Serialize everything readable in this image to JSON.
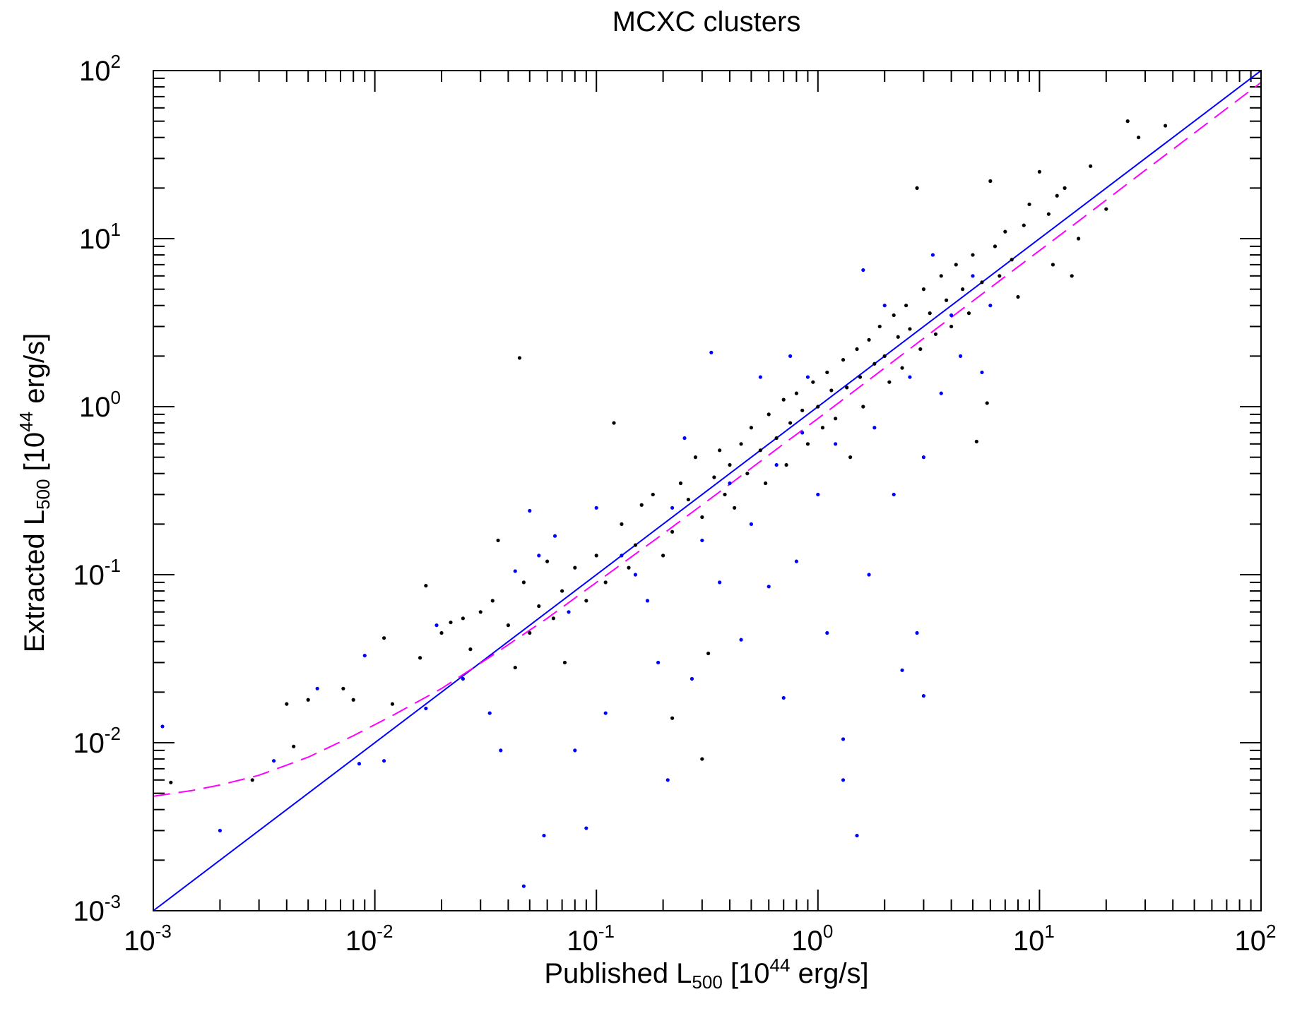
{
  "chart_data": {
    "type": "scatter",
    "title": "MCXC clusters",
    "xlabel": {
      "main": "Published L",
      "sub": "500",
      "pre": " [10",
      "sup": "44",
      "post": " erg/s]"
    },
    "ylabel": {
      "main": "Extracted L",
      "sub": "500",
      "pre": " [10",
      "sup": "44",
      "post": " erg/s]"
    },
    "x_scale": "log",
    "y_scale": "log",
    "xlim": [
      0.001,
      100
    ],
    "ylim": [
      0.001,
      100
    ],
    "x_tick_labels": [
      {
        "base": "10",
        "exp": "-3",
        "value": 0.001
      },
      {
        "base": "10",
        "exp": "-2",
        "value": 0.01
      },
      {
        "base": "10",
        "exp": "-1",
        "value": 0.1
      },
      {
        "base": "10",
        "exp": "0",
        "value": 1
      },
      {
        "base": "10",
        "exp": "1",
        "value": 10
      },
      {
        "base": "10",
        "exp": "2",
        "value": 100
      }
    ],
    "y_tick_labels": [
      {
        "base": "10",
        "exp": "-3",
        "value": 0.001
      },
      {
        "base": "10",
        "exp": "-2",
        "value": 0.01
      },
      {
        "base": "10",
        "exp": "-1",
        "value": 0.1
      },
      {
        "base": "10",
        "exp": "0",
        "value": 1
      },
      {
        "base": "10",
        "exp": "1",
        "value": 10
      },
      {
        "base": "10",
        "exp": "2",
        "value": 100
      }
    ],
    "grid": false,
    "colors": {
      "black_points": "#000000",
      "blue_points": "#0000ff",
      "identity_line": "#0000ff",
      "fit_line": "#ff00ff"
    },
    "lines": [
      {
        "style": "solid",
        "color": "#0000ff",
        "x": [
          0.001,
          100
        ],
        "y": [
          0.001,
          100
        ]
      },
      {
        "style": "dashed",
        "color": "#ff00ff",
        "x": [
          0.001,
          0.0015,
          0.002,
          0.003,
          0.005,
          0.008,
          0.012,
          0.02,
          0.035,
          0.06,
          0.1,
          0.2,
          0.4,
          0.7,
          1,
          2,
          4,
          8,
          15,
          30,
          60,
          100
        ],
        "y": [
          0.0048,
          0.0052,
          0.0056,
          0.0064,
          0.0082,
          0.011,
          0.0145,
          0.021,
          0.034,
          0.055,
          0.09,
          0.175,
          0.345,
          0.6,
          0.85,
          1.7,
          3.4,
          6.8,
          12.7,
          25.5,
          51,
          85
        ]
      }
    ],
    "series": [
      {
        "color": "#000000",
        "points": [
          [
            0.0012,
            0.0058
          ],
          [
            0.0028,
            0.006
          ],
          [
            0.004,
            0.017
          ],
          [
            0.0043,
            0.0095
          ],
          [
            0.005,
            0.018
          ],
          [
            0.0072,
            0.021
          ],
          [
            0.008,
            0.018
          ],
          [
            0.011,
            0.042
          ],
          [
            0.012,
            0.017
          ],
          [
            0.016,
            0.032
          ],
          [
            0.017,
            0.086
          ],
          [
            0.02,
            0.045
          ],
          [
            0.022,
            0.052
          ],
          [
            0.025,
            0.055
          ],
          [
            0.027,
            0.036
          ],
          [
            0.03,
            0.06
          ],
          [
            0.034,
            0.07
          ],
          [
            0.036,
            0.16
          ],
          [
            0.04,
            0.05
          ],
          [
            0.043,
            0.028
          ],
          [
            0.045,
            1.95
          ],
          [
            0.047,
            0.09
          ],
          [
            0.05,
            0.045
          ],
          [
            0.055,
            0.065
          ],
          [
            0.06,
            0.12
          ],
          [
            0.064,
            0.055
          ],
          [
            0.07,
            0.08
          ],
          [
            0.072,
            0.03
          ],
          [
            0.08,
            0.11
          ],
          [
            0.09,
            0.07
          ],
          [
            0.1,
            0.13
          ],
          [
            0.11,
            0.09
          ],
          [
            0.12,
            0.8
          ],
          [
            0.13,
            0.2
          ],
          [
            0.14,
            0.11
          ],
          [
            0.15,
            0.15
          ],
          [
            0.16,
            0.26
          ],
          [
            0.18,
            0.3
          ],
          [
            0.2,
            0.13
          ],
          [
            0.22,
            0.18
          ],
          [
            0.22,
            0.014
          ],
          [
            0.24,
            0.35
          ],
          [
            0.26,
            0.28
          ],
          [
            0.28,
            0.5
          ],
          [
            0.3,
            0.22
          ],
          [
            0.3,
            0.008
          ],
          [
            0.32,
            0.034
          ],
          [
            0.34,
            0.38
          ],
          [
            0.36,
            0.55
          ],
          [
            0.38,
            0.3
          ],
          [
            0.4,
            0.45
          ],
          [
            0.42,
            0.25
          ],
          [
            0.45,
            0.6
          ],
          [
            0.48,
            0.4
          ],
          [
            0.5,
            0.75
          ],
          [
            0.55,
            0.55
          ],
          [
            0.58,
            0.35
          ],
          [
            0.6,
            0.9
          ],
          [
            0.65,
            0.65
          ],
          [
            0.7,
            1.1
          ],
          [
            0.72,
            0.45
          ],
          [
            0.75,
            0.8
          ],
          [
            0.8,
            1.2
          ],
          [
            0.85,
            0.95
          ],
          [
            0.9,
            0.6
          ],
          [
            0.95,
            1.4
          ],
          [
            1.0,
            1.0
          ],
          [
            1.05,
            0.75
          ],
          [
            1.1,
            1.6
          ],
          [
            1.15,
            1.25
          ],
          [
            1.2,
            0.85
          ],
          [
            1.3,
            1.9
          ],
          [
            1.35,
            1.3
          ],
          [
            1.4,
            0.5
          ],
          [
            1.5,
            2.2
          ],
          [
            1.55,
            1.5
          ],
          [
            1.6,
            1.0
          ],
          [
            1.7,
            2.5
          ],
          [
            1.8,
            1.8
          ],
          [
            1.9,
            3.0
          ],
          [
            2.0,
            2.0
          ],
          [
            2.1,
            1.4
          ],
          [
            2.2,
            3.5
          ],
          [
            2.3,
            2.6
          ],
          [
            2.4,
            1.7
          ],
          [
            2.5,
            4.0
          ],
          [
            2.6,
            2.9
          ],
          [
            2.8,
            20.0
          ],
          [
            2.9,
            2.2
          ],
          [
            3.0,
            5.0
          ],
          [
            3.2,
            3.6
          ],
          [
            3.4,
            2.7
          ],
          [
            3.6,
            6.0
          ],
          [
            3.8,
            4.3
          ],
          [
            4.0,
            3.0
          ],
          [
            4.2,
            7.0
          ],
          [
            4.5,
            5.0
          ],
          [
            4.8,
            3.6
          ],
          [
            5.0,
            8.0
          ],
          [
            5.2,
            0.62
          ],
          [
            5.5,
            5.5
          ],
          [
            5.8,
            1.05
          ],
          [
            6.0,
            22.0
          ],
          [
            6.3,
            9.0
          ],
          [
            6.6,
            6.0
          ],
          [
            7.0,
            11.0
          ],
          [
            7.5,
            7.5
          ],
          [
            8.0,
            4.5
          ],
          [
            8.5,
            12.0
          ],
          [
            9.0,
            16.0
          ],
          [
            10.0,
            25.0
          ],
          [
            11.0,
            14.0
          ],
          [
            11.5,
            7.0
          ],
          [
            12.0,
            18.0
          ],
          [
            13.0,
            20.0
          ],
          [
            14.0,
            6.0
          ],
          [
            15.0,
            10.0
          ],
          [
            17.0,
            27.0
          ],
          [
            20.0,
            15.0
          ],
          [
            25.0,
            50.0
          ],
          [
            28.0,
            40.0
          ],
          [
            37.0,
            47.0
          ]
        ]
      },
      {
        "color": "#0000ff",
        "points": [
          [
            0.0011,
            0.0125
          ],
          [
            0.002,
            0.003
          ],
          [
            0.0035,
            0.0078
          ],
          [
            0.0055,
            0.021
          ],
          [
            0.0085,
            0.0075
          ],
          [
            0.009,
            0.033
          ],
          [
            0.011,
            0.0078
          ],
          [
            0.017,
            0.016
          ],
          [
            0.019,
            0.05
          ],
          [
            0.025,
            0.024
          ],
          [
            0.033,
            0.015
          ],
          [
            0.037,
            0.009
          ],
          [
            0.043,
            0.105
          ],
          [
            0.047,
            0.0014
          ],
          [
            0.05,
            0.24
          ],
          [
            0.055,
            0.13
          ],
          [
            0.058,
            0.0028
          ],
          [
            0.065,
            0.17
          ],
          [
            0.075,
            0.06
          ],
          [
            0.08,
            0.009
          ],
          [
            0.09,
            0.0031
          ],
          [
            0.1,
            0.25
          ],
          [
            0.11,
            0.015
          ],
          [
            0.13,
            0.13
          ],
          [
            0.15,
            0.1
          ],
          [
            0.17,
            0.07
          ],
          [
            0.19,
            0.03
          ],
          [
            0.21,
            0.006
          ],
          [
            0.22,
            0.25
          ],
          [
            0.25,
            0.65
          ],
          [
            0.27,
            0.024
          ],
          [
            0.3,
            0.16
          ],
          [
            0.33,
            2.1
          ],
          [
            0.36,
            0.09
          ],
          [
            0.4,
            0.35
          ],
          [
            0.45,
            0.041
          ],
          [
            0.5,
            0.2
          ],
          [
            0.55,
            1.5
          ],
          [
            0.6,
            0.085
          ],
          [
            0.65,
            0.45
          ],
          [
            0.7,
            0.0185
          ],
          [
            0.75,
            2.0
          ],
          [
            0.8,
            0.12
          ],
          [
            0.85,
            0.7
          ],
          [
            0.9,
            1.5
          ],
          [
            1.0,
            0.3
          ],
          [
            1.1,
            0.045
          ],
          [
            1.2,
            0.6
          ],
          [
            1.3,
            0.0105
          ],
          [
            1.3,
            0.006
          ],
          [
            1.5,
            0.0028
          ],
          [
            1.6,
            6.5
          ],
          [
            1.7,
            0.1
          ],
          [
            1.8,
            0.75
          ],
          [
            2.0,
            4.0
          ],
          [
            2.2,
            0.3
          ],
          [
            2.4,
            0.027
          ],
          [
            2.6,
            1.5
          ],
          [
            2.8,
            0.045
          ],
          [
            3.0,
            0.5
          ],
          [
            3.0,
            0.019
          ],
          [
            3.3,
            8.0
          ],
          [
            3.6,
            1.2
          ],
          [
            4.0,
            3.5
          ],
          [
            4.4,
            2.0
          ],
          [
            5.0,
            6.0
          ],
          [
            5.5,
            1.6
          ],
          [
            6.0,
            4.0
          ]
        ]
      }
    ]
  }
}
